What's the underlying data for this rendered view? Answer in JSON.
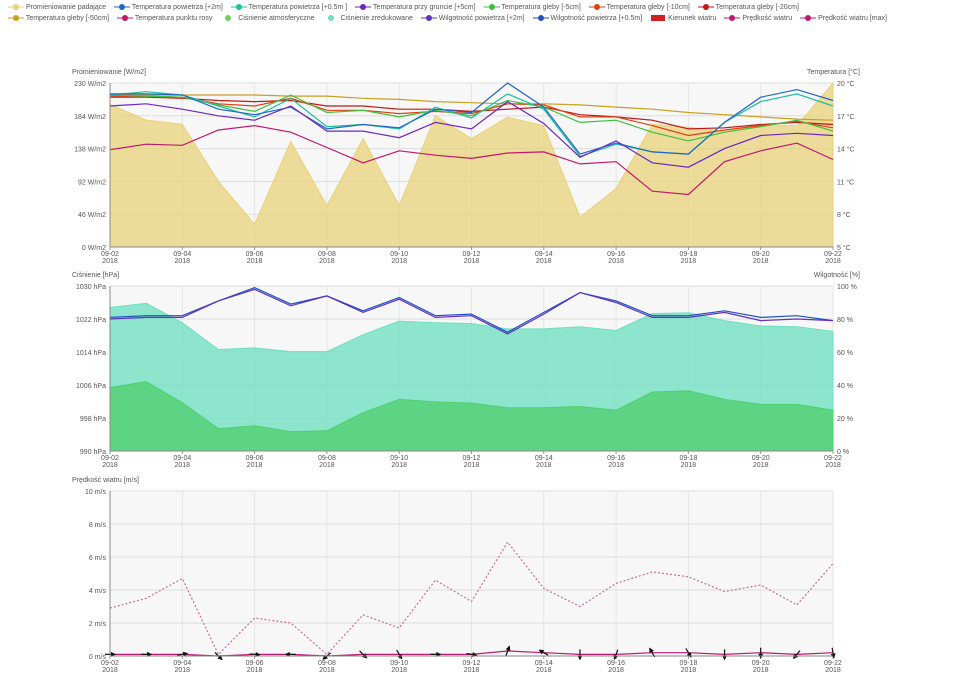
{
  "legend": [
    {
      "label": "Promieniowanie padające",
      "color": "#e8d27a",
      "shape": "line-dot"
    },
    {
      "label": "Temperatura powietrza [+2m]",
      "color": "#2066c8",
      "shape": "line-dot"
    },
    {
      "label": "Temperatura powietrza [+0.5m ]",
      "color": "#1ac0a0",
      "shape": "line-dot"
    },
    {
      "label": "Temperatura przy gruncie [+5cm]",
      "color": "#6a28c0",
      "shape": "line-dot"
    },
    {
      "label": "Temperatura gleby [-5cm]",
      "color": "#3ec03e",
      "shape": "line-dot"
    },
    {
      "label": "Temperatura gleby [-10cm]",
      "color": "#e04010",
      "shape": "line-dot"
    },
    {
      "label": "Temperatura gleby [-20cm]",
      "color": "#c01818",
      "shape": "line-dot"
    },
    {
      "label": "Temperatura gleby [-50cm]",
      "color": "#c8a020",
      "shape": "line-dot"
    },
    {
      "label": "Temperatura punktu rosy",
      "color": "#c0186a",
      "shape": "line-dot"
    },
    {
      "label": "Ciśnienie atmosferyczne",
      "color": "#70d060",
      "shape": "dot"
    },
    {
      "label": "Ciśnienie zredukowane",
      "color": "#70e0c0",
      "shape": "dot"
    },
    {
      "label": "Wilgotność powietrza [+2m]",
      "color": "#6030c0",
      "shape": "line-dot"
    },
    {
      "label": "Wilgotność powietrza [+0.5m]",
      "color": "#2050c0",
      "shape": "line-dot"
    },
    {
      "label": "Kierunek wiatru",
      "color": "#d02020",
      "shape": "rect"
    },
    {
      "label": "Prędkość wiatru",
      "color": "#c01870",
      "shape": "line-dot"
    },
    {
      "label": "Prędkość wiatru [max]",
      "color": "#c01870",
      "shape": "line-dot"
    }
  ],
  "chart_data": [
    {
      "type": "line",
      "title": "",
      "ylabel": "Promieniowanie [W/m2]",
      "ylabel_right": "Temperatura [°C]",
      "x": [
        "09-02",
        "09-03",
        "09-04",
        "09-05",
        "09-06",
        "09-07",
        "09-08",
        "09-09",
        "09-10",
        "09-11",
        "09-12",
        "09-13",
        "09-14",
        "09-15",
        "09-16",
        "09-17",
        "09-18",
        "09-19",
        "09-20",
        "09-21",
        "09-22"
      ],
      "xticks": [
        "09-02",
        "09-04",
        "09-06",
        "09-08",
        "09-10",
        "09-12",
        "09-14",
        "09-16",
        "09-18",
        "09-20",
        "09-22"
      ],
      "xticks_year": "2018",
      "yticks_left": [
        "0 W/m2",
        "46 W/m2",
        "92 W/m2",
        "138 W/m2",
        "184 W/m2",
        "230 W/m2"
      ],
      "yticks_right": [
        "5 °C",
        "8 °C",
        "11 °C",
        "14 °C",
        "17 °C",
        "20 °C"
      ],
      "ylim_left": [
        0,
        230
      ],
      "ylim_right": [
        5,
        20
      ],
      "grid": true,
      "series": [
        {
          "name": "Promieniowanie padające",
          "axis": "left",
          "color": "#e8d27a",
          "kind": "area",
          "values": [
            200,
            178,
            172,
            92,
            32,
            148,
            58,
            152,
            58,
            184,
            152,
            182,
            170,
            42,
            82,
            172,
            168,
            162,
            172,
            170,
            230
          ]
        },
        {
          "name": "Temperatura gleby [-50cm]",
          "axis": "right",
          "color": "#c8a020",
          "values": [
            18.9,
            18.9,
            18.9,
            18.9,
            18.9,
            18.8,
            18.8,
            18.6,
            18.5,
            18.3,
            18.2,
            18.1,
            18.1,
            18.0,
            17.8,
            17.6,
            17.3,
            17.1,
            16.9,
            16.7,
            16.6
          ]
        },
        {
          "name": "Temperatura gleby [-20cm]",
          "axis": "right",
          "color": "#c01818",
          "values": [
            18.7,
            18.7,
            18.6,
            18.4,
            18.3,
            18.4,
            17.9,
            17.9,
            17.6,
            17.6,
            17.4,
            17.6,
            17.8,
            17.1,
            16.9,
            16.6,
            15.8,
            15.9,
            16.2,
            16.4,
            16.2
          ]
        },
        {
          "name": "Temperatura gleby [-10cm]",
          "axis": "right",
          "color": "#e04010",
          "values": [
            18.8,
            18.8,
            18.7,
            18.1,
            17.9,
            18.6,
            17.5,
            17.5,
            17.2,
            17.4,
            17.2,
            18.1,
            18.0,
            16.9,
            16.9,
            16.1,
            15.2,
            15.7,
            16.1,
            16.5,
            15.9
          ]
        },
        {
          "name": "Temperatura gleby [-5cm]",
          "axis": "right",
          "color": "#3ec03e",
          "values": [
            18.9,
            18.8,
            18.7,
            18.0,
            17.4,
            18.9,
            17.3,
            17.5,
            16.9,
            17.5,
            17.0,
            18.4,
            17.8,
            16.4,
            16.6,
            15.5,
            14.7,
            15.5,
            16.0,
            16.6,
            15.6
          ]
        },
        {
          "name": "Temperatura powietrza [+0.5m ]",
          "axis": "right",
          "color": "#1ac0a0",
          "values": [
            18.9,
            19.2,
            18.9,
            17.9,
            16.9,
            18.6,
            16.0,
            16.2,
            15.8,
            17.8,
            16.8,
            19.0,
            17.6,
            13.3,
            14.4,
            13.7,
            13.5,
            16.4,
            18.3,
            19.0,
            17.9
          ]
        },
        {
          "name": "Temperatura powietrza [+2m]",
          "axis": "right",
          "color": "#2066c8",
          "values": [
            19.0,
            19.0,
            18.9,
            17.6,
            17.1,
            17.8,
            15.8,
            16.2,
            15.9,
            17.6,
            17.3,
            20.0,
            17.8,
            13.5,
            14.5,
            13.7,
            13.5,
            16.4,
            18.7,
            19.4,
            18.4
          ]
        },
        {
          "name": "Temperatura przy gruncie [+5cm]",
          "axis": "right",
          "color": "#6a28c0",
          "values": [
            17.9,
            18.1,
            17.6,
            17.0,
            16.6,
            17.9,
            15.6,
            15.6,
            15.0,
            16.4,
            15.8,
            18.3,
            16.3,
            13.2,
            14.7,
            12.7,
            12.3,
            14.0,
            15.2,
            15.4,
            15.2
          ]
        },
        {
          "name": "Temperatura punktu rosy",
          "axis": "right",
          "color": "#c0186a",
          "values": [
            13.9,
            14.4,
            14.3,
            15.7,
            16.1,
            15.5,
            14.1,
            12.7,
            13.8,
            13.4,
            13.1,
            13.6,
            13.7,
            12.6,
            12.8,
            10.1,
            9.8,
            12.8,
            13.8,
            14.5,
            13.0
          ]
        }
      ]
    },
    {
      "type": "area",
      "title": "",
      "ylabel": "Ciśnienie [hPa]",
      "ylabel_right": "Wilgotność [%]",
      "x": [
        "09-02",
        "09-03",
        "09-04",
        "09-05",
        "09-06",
        "09-07",
        "09-08",
        "09-09",
        "09-10",
        "09-11",
        "09-12",
        "09-13",
        "09-14",
        "09-15",
        "09-16",
        "09-17",
        "09-18",
        "09-19",
        "09-20",
        "09-21",
        "09-22"
      ],
      "xticks": [
        "09-02",
        "09-04",
        "09-06",
        "09-08",
        "09-10",
        "09-12",
        "09-14",
        "09-16",
        "09-18",
        "09-20",
        "09-22"
      ],
      "xticks_year": "2018",
      "yticks_left": [
        "990 hPa",
        "998 hPa",
        "1006 hPa",
        "1014 hPa",
        "1022 hPa",
        "1030 hPa"
      ],
      "yticks_right": [
        "0 %",
        "20 %",
        "40 %",
        "60 %",
        "80 %",
        "100 %"
      ],
      "ylim_left": [
        990,
        1030
      ],
      "ylim_right": [
        0,
        100
      ],
      "grid": true,
      "series": [
        {
          "name": "Ciśnienie zredukowane",
          "axis": "left",
          "color": "#70e0c0",
          "kind": "area",
          "values": [
            1024.8,
            1025.8,
            1021.1,
            1014.6,
            1015.0,
            1014.1,
            1014.1,
            1018.2,
            1021.5,
            1021.1,
            1020.9,
            1019.6,
            1019.6,
            1020.1,
            1019.2,
            1023.3,
            1023.5,
            1021.6,
            1020.3,
            1020.1,
            1019.0
          ]
        },
        {
          "name": "Ciśnienie atmosferyczne",
          "axis": "left",
          "color": "#50d070",
          "kind": "area",
          "values": [
            1005.4,
            1006.8,
            1001.7,
            995.4,
            996.1,
            994.7,
            994.9,
            999.3,
            1002.5,
            1001.9,
            1001.6,
            1000.5,
            1000.5,
            1000.8,
            999.9,
            1004.3,
            1004.6,
            1002.5,
            1001.3,
            1001.3,
            999.9
          ]
        },
        {
          "name": "Wilgotność powietrza [+0.5m]",
          "axis": "right",
          "color": "#2050c0",
          "values": [
            81,
            82,
            82,
            91,
            99,
            89,
            94,
            85,
            93,
            82,
            83,
            72,
            84,
            96,
            91,
            82,
            82,
            85,
            81,
            82,
            79
          ]
        },
        {
          "name": "Wilgotność powietrza [+2m]",
          "axis": "right",
          "color": "#6030c0",
          "values": [
            80,
            81,
            81,
            91,
            98,
            88,
            94,
            84,
            92,
            81,
            82,
            71,
            83,
            96,
            90,
            81,
            81,
            84,
            79,
            80,
            79
          ]
        }
      ]
    },
    {
      "type": "line",
      "title": "",
      "ylabel": "Prędkość wiatru [m/s]",
      "x": [
        "09-02",
        "09-03",
        "09-04",
        "09-05",
        "09-06",
        "09-07",
        "09-08",
        "09-09",
        "09-10",
        "09-11",
        "09-12",
        "09-13",
        "09-14",
        "09-15",
        "09-16",
        "09-17",
        "09-18",
        "09-19",
        "09-20",
        "09-21",
        "09-22"
      ],
      "xticks": [
        "09-02",
        "09-04",
        "09-06",
        "09-08",
        "09-10",
        "09-12",
        "09-14",
        "09-16",
        "09-18",
        "09-20",
        "09-22"
      ],
      "xticks_year": "2018",
      "yticks_left": [
        "0 m/s",
        "2 m/s",
        "4 m/s",
        "6 m/s",
        "8 m/s",
        "10 m/s"
      ],
      "ylim_left": [
        0,
        10
      ],
      "grid": true,
      "series": [
        {
          "name": "Prędkość wiatru [max]",
          "axis": "left",
          "color": "#c87090",
          "dashed": true,
          "values": [
            2.9,
            3.5,
            4.7,
            0.1,
            2.3,
            2.0,
            0.1,
            2.5,
            1.7,
            4.6,
            3.3,
            6.9,
            4.1,
            3.0,
            4.4,
            5.1,
            4.8,
            3.9,
            4.3,
            3.1,
            5.6
          ]
        },
        {
          "name": "Prędkość wiatru",
          "axis": "left",
          "color": "#c01870",
          "values": [
            0.1,
            0.1,
            0.1,
            0.0,
            0.1,
            0.1,
            0.0,
            0.1,
            0.1,
            0.1,
            0.1,
            0.3,
            0.2,
            0.1,
            0.1,
            0.2,
            0.2,
            0.1,
            0.2,
            0.1,
            0.2
          ]
        },
        {
          "name": "Kierunek wiatru",
          "axis": "left",
          "color": "#111111",
          "kind": "arrows",
          "values": [
            90,
            90,
            80,
            135,
            95,
            270,
            230,
            135,
            150,
            90,
            100,
            20,
            300,
            180,
            200,
            330,
            150,
            180,
            180,
            220,
            170
          ]
        }
      ]
    }
  ]
}
